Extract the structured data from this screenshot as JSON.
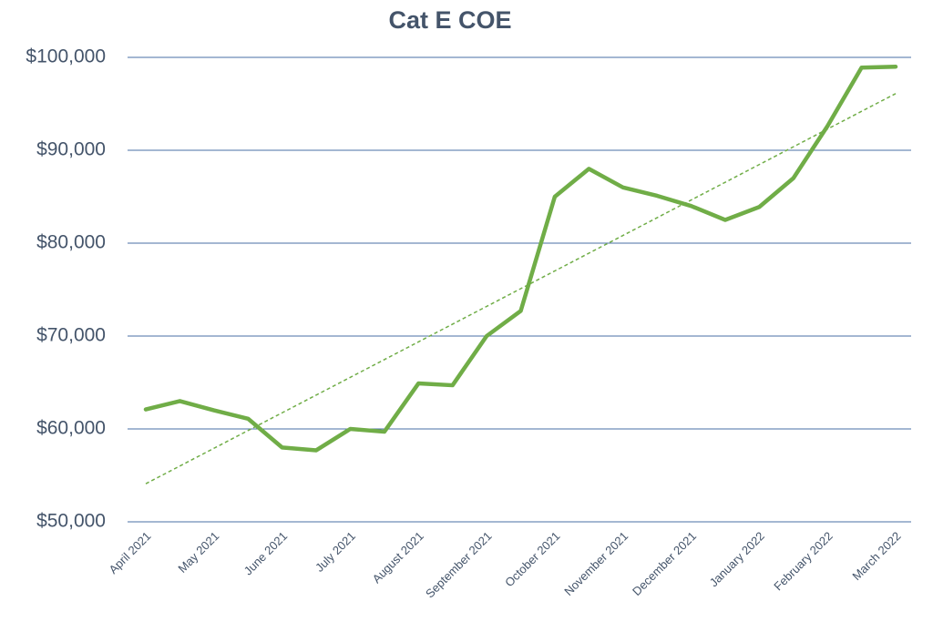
{
  "chart_data": {
    "type": "line",
    "title": "Cat E COE",
    "categories": [
      "April 2021",
      null,
      "May 2021",
      null,
      "June 2021",
      null,
      "July 2021",
      null,
      "August 2021",
      null,
      "September 2021",
      null,
      "October 2021",
      null,
      "November 2021",
      null,
      "December 2021",
      null,
      "January 2022",
      null,
      "February 2022",
      null,
      "March 2022"
    ],
    "values": [
      62100,
      63000,
      62000,
      61100,
      58000,
      57700,
      60000,
      59700,
      64900,
      64700,
      70000,
      72700,
      85000,
      88000,
      86000,
      85100,
      84000,
      82500,
      83900,
      87000,
      92600,
      98900,
      99000
    ],
    "color": "#70ad47",
    "trendline": {
      "start": 54100,
      "end": 96100,
      "color": "#70ad47"
    },
    "ylim": [
      50000,
      100000
    ],
    "yticks": [
      {
        "value": 50000,
        "label": "$50,000"
      },
      {
        "value": 60000,
        "label": "$60,000"
      },
      {
        "value": 70000,
        "label": "$70,000"
      },
      {
        "value": 80000,
        "label": "$80,000"
      },
      {
        "value": 90000,
        "label": "$90,000"
      },
      {
        "value": 100000,
        "label": "$100,000"
      }
    ],
    "grid": true
  }
}
